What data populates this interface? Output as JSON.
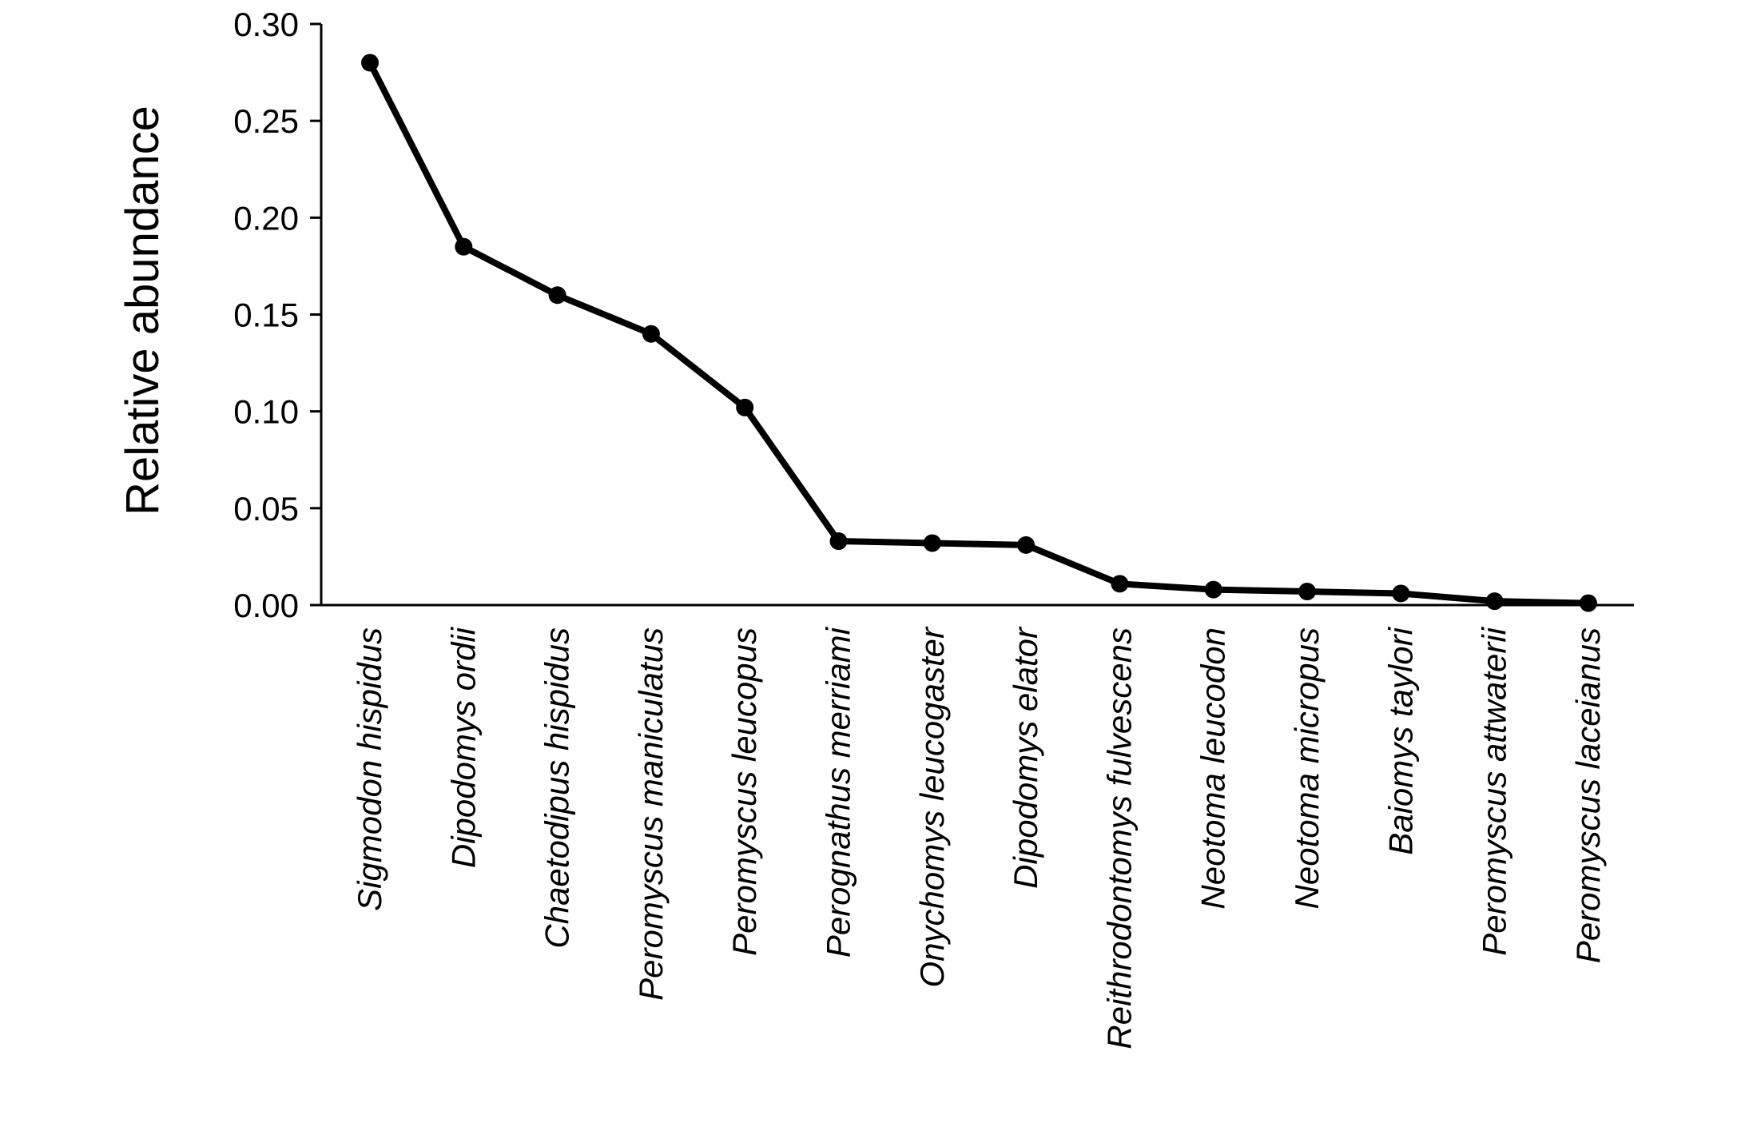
{
  "chart_data": {
    "type": "line",
    "ylabel": "Relative abundance",
    "xlabel": "",
    "ylim": [
      0,
      0.3
    ],
    "yticks": [
      "0.00",
      "0.05",
      "0.10",
      "0.15",
      "0.20",
      "0.25",
      "0.30"
    ],
    "categories": [
      "Sigmodon hispidus",
      "Dipodomys ordii",
      "Chaetodipus hispidus",
      "Peromyscus maniculatus",
      "Peromyscus leucopus",
      "Perognathus merriami",
      "Onychomys leucogaster",
      "Dipodomys elator",
      "Reithrodontomys fulvescens",
      "Neotoma leucodon",
      "Neotoma micropus",
      "Baiomys taylori",
      "Peromyscus attwaterii",
      "Peromyscus laceianus"
    ],
    "values": [
      0.28,
      0.185,
      0.16,
      0.14,
      0.102,
      0.033,
      0.032,
      0.031,
      0.011,
      0.008,
      0.007,
      0.006,
      0.002,
      0.001
    ],
    "grid": false,
    "color": "#000000"
  }
}
